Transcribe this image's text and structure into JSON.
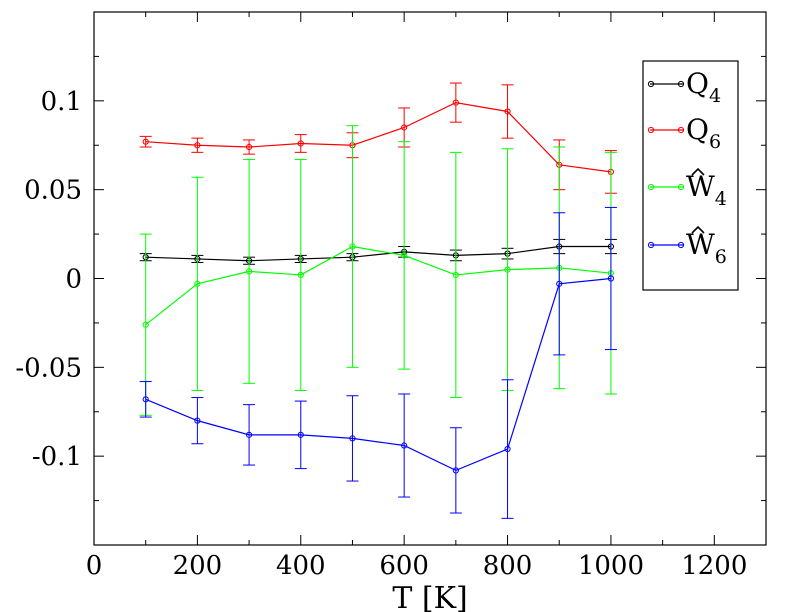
{
  "chart_data": {
    "type": "line",
    "xlabel": "T [K]",
    "ylabel": "",
    "title": "",
    "xlim": [
      0,
      1300
    ],
    "ylim": [
      -0.15,
      0.15
    ],
    "x_ticks": [
      0,
      200,
      400,
      600,
      800,
      1000,
      1200
    ],
    "x_tick_labels": [
      "0",
      "200",
      "400",
      "600",
      "800",
      "1000",
      "1200"
    ],
    "y_ticks": [
      -0.1,
      -0.05,
      0,
      0.05,
      0.1
    ],
    "y_tick_labels": [
      "-0.1",
      "-0.05",
      "0",
      "0.05",
      "0.1"
    ],
    "grid": false,
    "legend_position": "top-right",
    "x": [
      100,
      200,
      300,
      400,
      500,
      600,
      700,
      800,
      900,
      1000
    ],
    "series": [
      {
        "name_main": "Q",
        "name_sub": "4",
        "name_hat": false,
        "color": "#000000",
        "values": [
          0.012,
          0.011,
          0.01,
          0.011,
          0.012,
          0.015,
          0.013,
          0.014,
          0.018,
          0.018
        ],
        "errors": [
          0.002,
          0.002,
          0.002,
          0.002,
          0.002,
          0.003,
          0.003,
          0.003,
          0.004,
          0.004
        ]
      },
      {
        "name_main": "Q",
        "name_sub": "6",
        "name_hat": false,
        "color": "#ff0000",
        "values": [
          0.077,
          0.075,
          0.074,
          0.076,
          0.075,
          0.085,
          0.099,
          0.094,
          0.064,
          0.06
        ],
        "errors": [
          0.003,
          0.004,
          0.004,
          0.005,
          0.007,
          0.011,
          0.011,
          0.015,
          0.014,
          0.012
        ]
      },
      {
        "name_main": "W",
        "name_sub": "4",
        "name_hat": true,
        "color": "#00ff00",
        "values": [
          -0.026,
          -0.003,
          0.004,
          0.002,
          0.018,
          0.013,
          0.002,
          0.005,
          0.006,
          0.003
        ],
        "errors": [
          0.051,
          0.06,
          0.063,
          0.065,
          0.068,
          0.064,
          0.069,
          0.068,
          0.068,
          0.068
        ]
      },
      {
        "name_main": "W",
        "name_sub": "6",
        "name_hat": true,
        "color": "#0000ff",
        "values": [
          -0.068,
          -0.08,
          -0.088,
          -0.088,
          -0.09,
          -0.094,
          -0.108,
          -0.096,
          -0.003,
          0.0
        ],
        "errors": [
          0.01,
          0.013,
          0.017,
          0.019,
          0.024,
          0.029,
          0.024,
          0.039,
          0.04,
          0.04
        ]
      }
    ]
  }
}
